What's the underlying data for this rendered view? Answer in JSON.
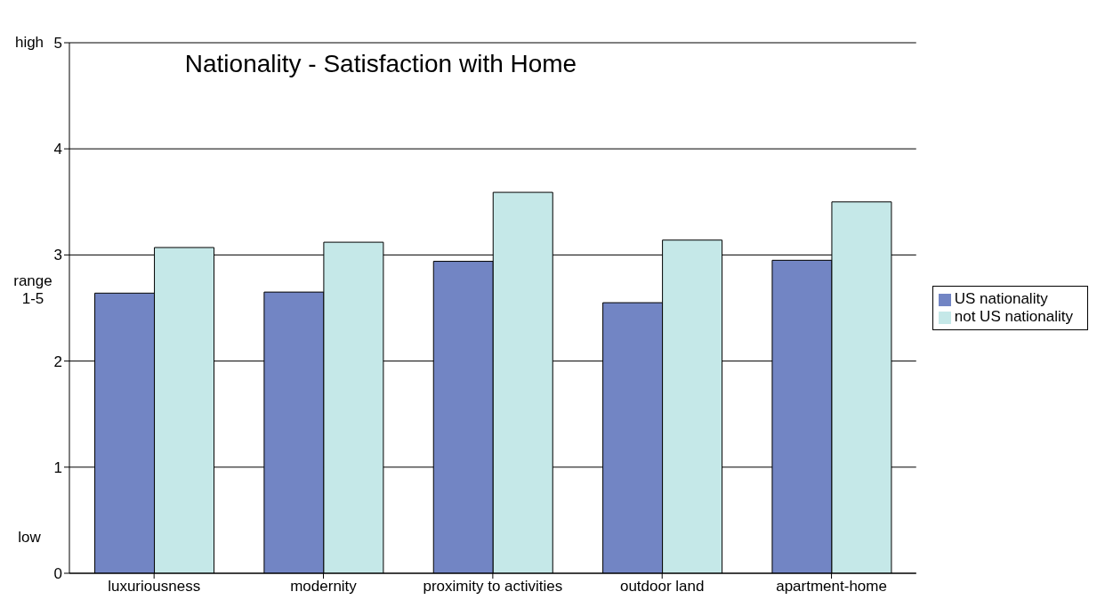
{
  "chart_data": {
    "type": "bar",
    "title": "Nationality - Satisfaction with Home",
    "ylabel": "range 1-5",
    "categories": [
      "luxuriousness",
      "modernity",
      "proximity to activities",
      "outdoor land",
      "apartment-home"
    ],
    "series": [
      {
        "name": "US nationality",
        "color": "#7285c4",
        "values": [
          2.64,
          2.65,
          2.94,
          2.55,
          2.95
        ]
      },
      {
        "name": "not US nationality",
        "color": "#c5e8e8",
        "values": [
          3.07,
          3.12,
          3.59,
          3.14,
          3.5
        ]
      }
    ],
    "ylim": [
      0,
      5
    ],
    "yticks": [
      0,
      1,
      2,
      3,
      4,
      5
    ],
    "grid": "y",
    "legend": "right",
    "annotations": [
      "high",
      "low"
    ]
  }
}
